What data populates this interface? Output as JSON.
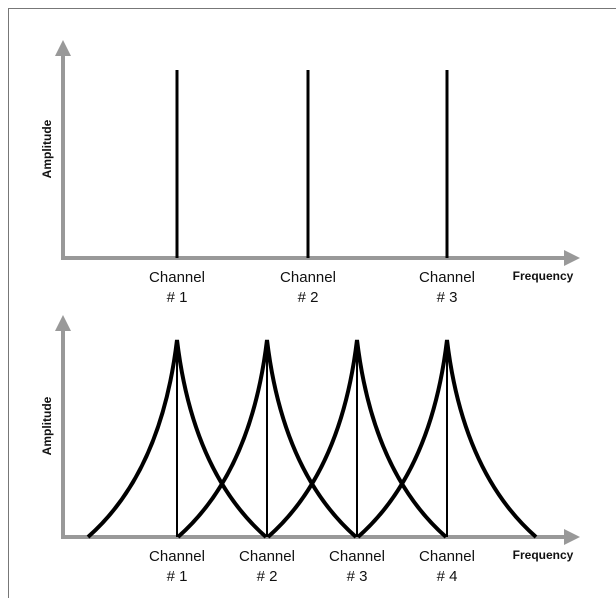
{
  "panels": [
    {
      "y_label": "Amplitude",
      "x_label": "Frequency",
      "channels": [
        [
          "Channel",
          "# 1"
        ],
        [
          "Channel",
          "# 2"
        ],
        [
          "Channel",
          "# 3"
        ]
      ]
    },
    {
      "y_label": "Amplitude",
      "x_label": "Frequency",
      "channels": [
        [
          "Channel",
          "# 1"
        ],
        [
          "Channel",
          "# 2"
        ],
        [
          "Channel",
          "# 3"
        ],
        [
          "Channel",
          "# 4"
        ]
      ]
    }
  ]
}
